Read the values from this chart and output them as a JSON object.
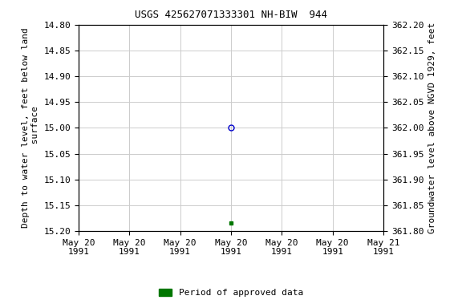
{
  "title": "USGS 425627071333301 NH-BIW  944",
  "ylabel_left": "Depth to water level, feet below land\n surface",
  "ylabel_right": "Groundwater level above NGVD 1929, feet",
  "ylim_left": [
    15.2,
    14.8
  ],
  "ylim_right": [
    361.8,
    362.2
  ],
  "yticks_left": [
    14.8,
    14.85,
    14.9,
    14.95,
    15.0,
    15.05,
    15.1,
    15.15,
    15.2
  ],
  "yticks_right": [
    362.2,
    362.15,
    362.1,
    362.05,
    362.0,
    361.95,
    361.9,
    361.85,
    361.8
  ],
  "open_circle": {
    "y": 15.0,
    "color": "#0000cc",
    "markersize": 5
  },
  "filled_square": {
    "y": 15.185,
    "color": "#007700",
    "markersize": 3
  },
  "legend_label": "Period of approved data",
  "legend_color": "#007700",
  "xtick_labels": [
    "May 20\n1991",
    "May 20\n1991",
    "May 20\n1991",
    "May 20\n1991",
    "May 20\n1991",
    "May 20\n1991",
    "May 21\n1991"
  ],
  "grid_color": "#cccccc",
  "background_color": "#ffffff",
  "title_fontsize": 9,
  "tick_fontsize": 8,
  "ylabel_fontsize": 8
}
